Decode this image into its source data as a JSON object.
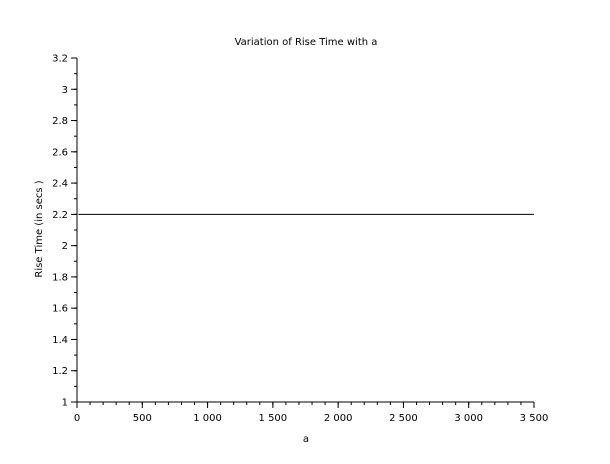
{
  "chart_data": {
    "type": "line",
    "title": "Variation of Rise Time with a",
    "xlabel": "a",
    "ylabel": "Rise Time (in secs )",
    "xlim": [
      0,
      3500
    ],
    "ylim": [
      1,
      3.2
    ],
    "grid": false,
    "x_ticks": [
      0,
      500,
      1000,
      1500,
      2000,
      2500,
      3000,
      3500
    ],
    "x_tick_labels": [
      "0",
      "500",
      "1 000",
      "1 500",
      "2 000",
      "2 500",
      "3 000",
      "3 500"
    ],
    "y_ticks": [
      1,
      1.2,
      1.4,
      1.6,
      1.8,
      2,
      2.2,
      2.4,
      2.6,
      2.8,
      3,
      3.2
    ],
    "y_tick_labels": [
      "1",
      "1.2",
      "1.4",
      "1.6",
      "1.8",
      "2",
      "2.2",
      "2.4",
      "2.6",
      "2.8",
      "3",
      "3.2"
    ],
    "x_minor_step": 100,
    "y_minor_step": 0.1,
    "series": [
      {
        "color": "#000000",
        "x": [
          10,
          3500
        ],
        "y": [
          2.2,
          2.2
        ]
      }
    ]
  }
}
